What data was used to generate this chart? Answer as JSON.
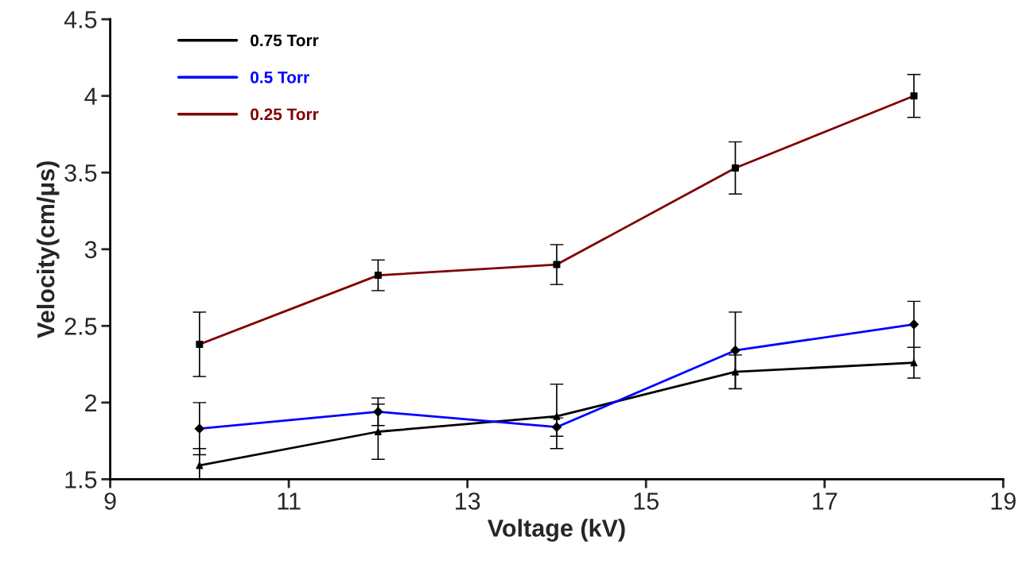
{
  "chart_data": {
    "type": "line",
    "xlabel": "Voltage (kV)",
    "ylabel": "Velocity(cm/μs)",
    "x": [
      10,
      12,
      14,
      16,
      18
    ],
    "series": [
      {
        "name": "0.75 Torr",
        "color": "#000000",
        "marker": "triangle",
        "values": [
          1.59,
          1.81,
          1.91,
          2.2,
          2.26
        ],
        "errors": [
          [
            1.5,
            1.7
          ],
          0.18,
          0.21,
          0.11,
          0.1
        ]
      },
      {
        "name": "0.5 Torr",
        "color": "#0000ff",
        "marker": "diamond",
        "values": [
          1.83,
          1.94,
          1.84,
          2.34,
          2.51
        ],
        "errors": [
          0.17,
          0.09,
          0.06,
          0.25,
          0.15
        ]
      },
      {
        "name": "0.25 Torr",
        "color": "#800000",
        "marker": "square",
        "values": [
          2.38,
          2.83,
          2.9,
          3.53,
          4.0
        ],
        "errors": [
          0.21,
          0.1,
          0.13,
          0.17,
          0.14
        ]
      }
    ],
    "xlim": [
      9,
      19
    ],
    "xticks": [
      9,
      11,
      13,
      15,
      17,
      19
    ],
    "ylim": [
      1.5,
      4.5
    ],
    "yticks": [
      1.5,
      2,
      2.5,
      3,
      3.5,
      4,
      4.5
    ],
    "grid": false,
    "legend": "top left"
  }
}
